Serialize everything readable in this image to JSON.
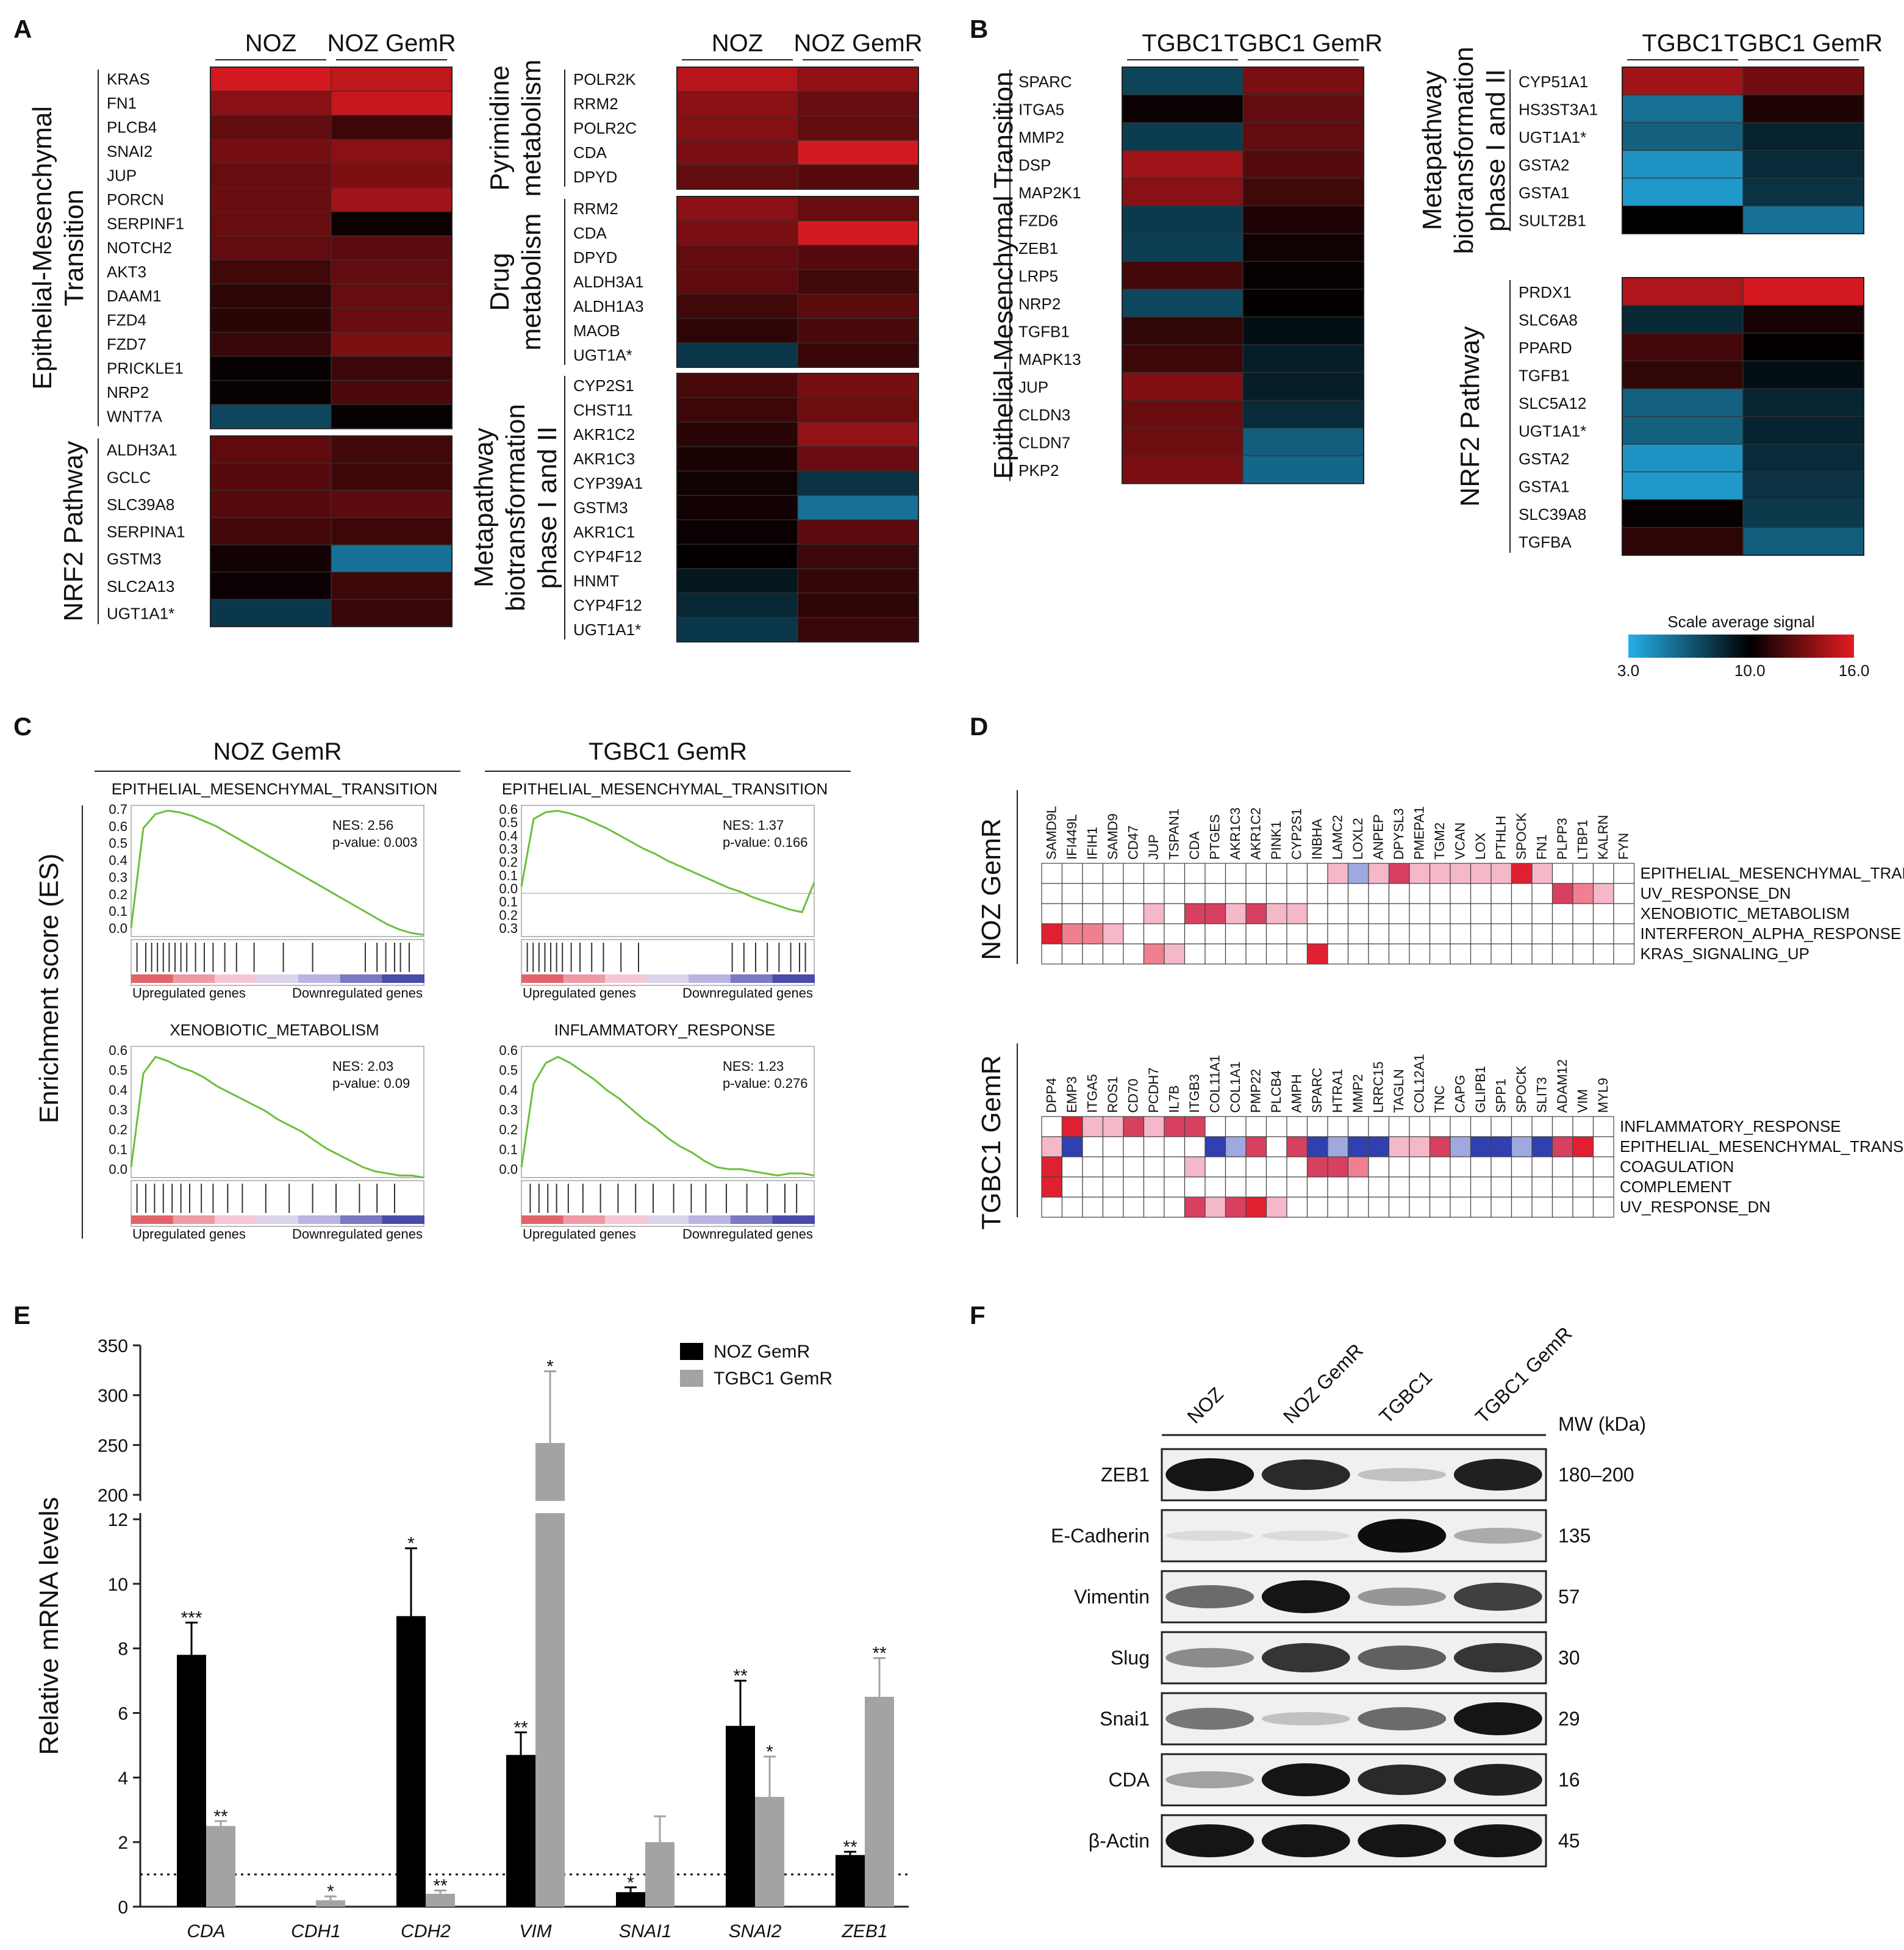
{
  "panels": {
    "A": {
      "letter": "A",
      "conditions": [
        "NOZ",
        "NOZ GemR"
      ],
      "left": {
        "emt_label": [
          "Epithelial-Mesenchymal",
          "Transition"
        ],
        "emt_genes": [
          "KRAS",
          "FN1",
          "PLCB4",
          "SNAI2",
          "JUP",
          "PORCN",
          "SERPINF1",
          "NOTCH2",
          "AKT3",
          "DAAM1",
          "FZD4",
          "FZD7",
          "PRICKLE1",
          "NRP2",
          "WNT7A"
        ],
        "emt_values": [
          [
            15.5,
            15.0
          ],
          [
            13.6,
            15.2
          ],
          [
            12.6,
            11.6
          ],
          [
            13.1,
            13.6
          ],
          [
            12.7,
            13.3
          ],
          [
            12.8,
            14.2
          ],
          [
            12.7,
            10.3
          ],
          [
            12.6,
            12.4
          ],
          [
            11.7,
            12.6
          ],
          [
            11.2,
            12.7
          ],
          [
            11.1,
            12.8
          ],
          [
            11.5,
            13.3
          ],
          [
            10.2,
            11.6
          ],
          [
            10.2,
            12.0
          ],
          [
            7.2,
            10.2
          ]
        ],
        "nrf2_label": [
          "NRF2 Pathway"
        ],
        "nrf2_genes": [
          "ALDH3A1",
          "GCLC",
          "SLC39A8",
          "SERPINA1",
          "GSTM3",
          "SLC2A13",
          "UGT1A1*"
        ],
        "nrf2_values": [
          [
            12.5,
            11.7
          ],
          [
            12.3,
            11.6
          ],
          [
            12.3,
            12.4
          ],
          [
            11.8,
            11.6
          ],
          [
            10.5,
            5.5
          ],
          [
            10.3,
            11.6
          ],
          [
            7.8,
            11.5
          ]
        ]
      },
      "right": {
        "pyr_label": [
          "Pyrimidine",
          "metabolism"
        ],
        "pyr_genes": [
          "POLR2K",
          "RRM2",
          "POLR2C",
          "CDA",
          "DPYD"
        ],
        "pyr_values": [
          [
            14.8,
            13.8
          ],
          [
            13.6,
            12.7
          ],
          [
            13.5,
            12.6
          ],
          [
            13.2,
            15.6
          ],
          [
            12.6,
            12.3
          ]
        ],
        "drug_label": [
          "Drug",
          "metabolism"
        ],
        "drug_genes": [
          "RRM2",
          "CDA",
          "DPYD",
          "ALDH3A1",
          "ALDH1A3",
          "MAOB",
          "UGT1A*"
        ],
        "drug_values": [
          [
            13.6,
            12.7
          ],
          [
            13.2,
            15.6
          ],
          [
            12.6,
            12.3
          ],
          [
            12.5,
            11.7
          ],
          [
            11.7,
            12.4
          ],
          [
            11.2,
            11.9
          ],
          [
            7.8,
            11.5
          ]
        ],
        "meta_label": [
          "Metapathway",
          "biotransformation",
          "phase I and II"
        ],
        "meta_genes": [
          "CYP2S1",
          "CHST11",
          "AKR1C2",
          "AKR1C3",
          "CYP39A1",
          "GSTM3",
          "AKR1C1",
          "CYP4F12",
          "HNMT",
          "CYP4F12",
          "UGT1A1*"
        ],
        "meta_values": [
          [
            11.9,
            13.1
          ],
          [
            11.6,
            12.9
          ],
          [
            11.1,
            13.9
          ],
          [
            10.7,
            12.8
          ],
          [
            10.4,
            8.0
          ],
          [
            10.5,
            5.5
          ],
          [
            10.3,
            12.4
          ],
          [
            10.1,
            11.6
          ],
          [
            9.1,
            11.4
          ],
          [
            8.4,
            11.2
          ],
          [
            7.8,
            11.5
          ]
        ]
      }
    },
    "B": {
      "letter": "B",
      "conditions": [
        "TGBC1",
        "TGBC1 GemR"
      ],
      "emt_label": [
        "Epithelial-Mesenchymal Transition"
      ],
      "emt_genes": [
        "SPARC",
        "ITGA5",
        "MMP2",
        "DSP",
        "MAP2K1",
        "FZD6",
        "ZEB1",
        "LRP5",
        "NRP2",
        "TGFB1",
        "MAPK13",
        "JUP",
        "CLDN3",
        "CLDN7",
        "PKP2"
      ],
      "emt_values": [
        [
          7.3,
          13.2
        ],
        [
          10.3,
          12.6
        ],
        [
          7.6,
          12.6
        ],
        [
          14.2,
          12.3
        ],
        [
          13.6,
          11.7
        ],
        [
          7.7,
          10.8
        ],
        [
          7.5,
          10.4
        ],
        [
          11.8,
          10.2
        ],
        [
          7.2,
          10.1
        ],
        [
          11.3,
          9.4
        ],
        [
          11.6,
          8.8
        ],
        [
          13.4,
          8.8
        ],
        [
          12.8,
          8.3
        ],
        [
          12.9,
          6.3
        ],
        [
          13.2,
          5.9
        ]
      ],
      "meta_label": [
        "Metapathway",
        "biotransformation",
        "phase I and II"
      ],
      "meta_genes": [
        "CYP51A1",
        "HS3ST3A1",
        "UGT1A1*",
        "GSTA2",
        "GSTA1",
        "SULT2B1"
      ],
      "meta_values": [
        [
          14.2,
          13.0
        ],
        [
          5.6,
          10.8
        ],
        [
          6.2,
          8.6
        ],
        [
          4.2,
          8.3
        ],
        [
          3.9,
          8.0
        ],
        [
          10.0,
          5.5
        ]
      ],
      "nrf2_label": [
        "NRF2 Pathway"
      ],
      "nrf2_genes": [
        "PRDX1",
        "SLC6A8",
        "PPARD",
        "TGFB1",
        "SLC5A12",
        "UGT1A1*",
        "GSTA2",
        "GSTA1",
        "SLC39A8",
        "TGFBA"
      ],
      "nrf2_values": [
        [
          14.6,
          15.6
        ],
        [
          8.4,
          10.6
        ],
        [
          11.8,
          10.1
        ],
        [
          11.3,
          9.4
        ],
        [
          6.2,
          8.5
        ],
        [
          6.2,
          8.6
        ],
        [
          4.2,
          8.3
        ],
        [
          3.9,
          8.0
        ],
        [
          10.2,
          7.7
        ],
        [
          11.2,
          6.3
        ]
      ],
      "scale": {
        "title": "Scale average signal",
        "min": 3.0,
        "mid": 10.0,
        "max": 16.0,
        "min_label": "3.0",
        "mid_label": "10.0",
        "max_label": "16.0",
        "colors": [
          "#24b0ea",
          "#000000",
          "#e41b22"
        ]
      }
    },
    "C": {
      "letter": "C",
      "ylabel": "Enrichment score (ES)",
      "col_titles": [
        "NOZ GemR",
        "TGBC1 GemR"
      ],
      "up_label": "Upregulated genes",
      "down_label": "Downregulated genes",
      "plots": [
        {
          "title": "EPITHELIAL_MESENCHYMAL_TRANSITION",
          "nes": "NES: 2.56",
          "pval": "p-value: 0.003",
          "ticks": [
            "0.7",
            "0.6",
            "0.5",
            "0.4",
            "0.3",
            "0.2",
            "0.1",
            "0.0"
          ]
        },
        {
          "title": "EPITHELIAL_MESENCHYMAL_TRANSITION",
          "nes": "NES: 1.37",
          "pval": "p-value: 0.166",
          "ticks": [
            "0.6",
            "0.5",
            "0.4",
            "0.3",
            "0.2",
            "0.1",
            "0.0",
            "0.1",
            "0.2",
            "0.3"
          ]
        },
        {
          "title": "XENOBIOTIC_METABOLISM",
          "nes": "NES: 2.03",
          "pval": "p-value: 0.09",
          "ticks": [
            "0.6",
            "0.5",
            "0.4",
            "0.3",
            "0.2",
            "0.1",
            "0.0"
          ]
        },
        {
          "title": "INFLAMMATORY_RESPONSE",
          "nes": "NES: 1.23",
          "pval": "p-value: 0.276",
          "ticks": [
            "0.6",
            "0.5",
            "0.4",
            "0.3",
            "0.2",
            "0.1",
            "0.0"
          ]
        }
      ]
    },
    "D": {
      "letter": "D",
      "top": {
        "label": "NOZ GemR",
        "genes": [
          "SAMD9L",
          "IFI449L",
          "IFIH1",
          "SAMD9",
          "CD47",
          "JUP",
          "TSPAN1",
          "CDA",
          "PTGES",
          "AKR1C3",
          "AKR1C2",
          "PINK1",
          "CYP2S1",
          "INBHA",
          "LAMC2",
          "LOXL2",
          "ANPEP",
          "DPYSL3",
          "PMEPA1",
          "TGM2",
          "VCAN",
          "LOX",
          "PTHLH",
          "SPOCK",
          "FN1",
          "PLPP3",
          "LTBP1",
          "KALRN",
          "FYN"
        ],
        "rows": [
          "EPITHELIAL_MESENCHYMAL_TRANSITION",
          "UV_RESPONSE_DN",
          "XENOBIOTIC_METABOLISM",
          "INTERFERON_ALPHA_RESPONSE",
          "KRAS_SIGNALING_UP"
        ]
      },
      "bottom": {
        "label": "TGBC1 GemR",
        "genes": [
          "DPP4",
          "EMP3",
          "ITGA5",
          "ROS1",
          "CD70",
          "PCDH7",
          "IL7B",
          "ITGB3",
          "COL11A1",
          "COL1A1",
          "PMP22",
          "PLCB4",
          "AMPH",
          "SPARC",
          "HTRA1",
          "MMP2",
          "LRRC15",
          "TAGLN",
          "COL12A1",
          "TNC",
          "CAPG",
          "GLIPB1",
          "SPP1",
          "SPOCK",
          "SLIT3",
          "ADAM12",
          "VIM",
          "MYL9"
        ],
        "rows": [
          "INFLAMMATORY_RESPONSE",
          "EPITHELIAL_MESENCHYMAL_TRANSITION",
          "COAGULATION",
          "COMPLEMENT",
          "UV_RESPONSE_DN"
        ]
      }
    },
    "E": {
      "letter": "E"
    },
    "F": {
      "letter": "F",
      "lanes": [
        "NOZ",
        "NOZ GemR",
        "TGBC1",
        "TGBC1 GemR"
      ],
      "mw_header": "MW (kDa)",
      "blots": [
        {
          "protein": "ZEB1",
          "mw": "180–200",
          "intensity": [
            0.95,
            0.85,
            0.15,
            0.9
          ]
        },
        {
          "protein": "E-Cadherin",
          "mw": "135",
          "intensity": [
            0.03,
            0.03,
            0.98,
            0.25
          ]
        },
        {
          "protein": "Vimentin",
          "mw": "57",
          "intensity": [
            0.55,
            0.95,
            0.35,
            0.75
          ]
        },
        {
          "protein": "Slug",
          "mw": "30",
          "intensity": [
            0.4,
            0.8,
            0.6,
            0.8
          ]
        },
        {
          "protein": "Snai1",
          "mw": "29",
          "intensity": [
            0.5,
            0.15,
            0.55,
            0.95
          ]
        },
        {
          "protein": "CDA",
          "mw": "16",
          "intensity": [
            0.3,
            0.95,
            0.85,
            0.9
          ]
        },
        {
          "protein": "β-Actin",
          "mw": "45",
          "intensity": [
            0.95,
            0.95,
            0.95,
            0.95
          ]
        }
      ]
    }
  },
  "chart_data": [
    {
      "type": "bar",
      "categories": [
        "CDA",
        "CDH1",
        "CDH2",
        "VIM",
        "SNAI1",
        "SNAI2",
        "ZEB1"
      ],
      "series": [
        {
          "name": "NOZ GemR",
          "values": [
            7.8,
            0.0,
            9.0,
            4.7,
            0.45,
            5.6,
            1.6
          ],
          "errors": [
            1.0,
            0.0,
            2.1,
            0.7,
            0.15,
            1.4,
            0.1
          ],
          "sig": [
            "***",
            "",
            "*",
            "**",
            "*",
            "**",
            "**"
          ],
          "color": "#000000"
        },
        {
          "name": "TGBC1 GemR",
          "values": [
            2.5,
            0.2,
            0.4,
            252,
            2.0,
            3.4,
            6.5
          ],
          "errors": [
            0.15,
            0.12,
            0.1,
            72,
            0.8,
            1.25,
            1.2
          ],
          "sig": [
            "**",
            "*",
            "**",
            "*",
            "",
            "*",
            "**"
          ],
          "color": "#a3a3a3"
        }
      ],
      "ylabel": "Relative mRNA levels",
      "y_ticks_lower": [
        "0",
        "2",
        "4",
        "6",
        "8",
        "10",
        "12"
      ],
      "y_ticks_upper": [
        "200",
        "250",
        "300",
        "350"
      ],
      "y_axis_break": [
        12,
        200
      ],
      "reference_line": 1.0,
      "legend_position": "top-right"
    }
  ]
}
